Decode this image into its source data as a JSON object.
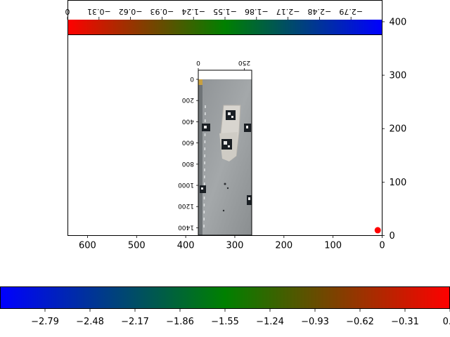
{
  "chart_data": [
    {
      "type": "scatter",
      "xlim": [
        0,
        640
      ],
      "ylim": [
        0,
        440
      ],
      "x_inverted": true,
      "xticks": [
        600,
        500,
        400,
        300,
        200,
        100,
        0
      ],
      "xtick_labels": [
        "600",
        "500",
        "400",
        "300",
        "200",
        "100",
        "0"
      ],
      "yticks": [
        0,
        100,
        200,
        300,
        400
      ],
      "ytick_labels": [
        "0",
        "100",
        "200",
        "300",
        "400"
      ],
      "y_axis_side": "right",
      "points": [
        {
          "x": 9,
          "y": 10
        }
      ],
      "point_color": "#ff0000",
      "grid": false
    },
    {
      "type": "colorbar",
      "orientation": "horizontal",
      "range": [
        -3.1,
        0
      ],
      "ticks": [
        -2.79,
        -2.48,
        -2.17,
        -1.86,
        -1.55,
        -1.24,
        -0.93,
        -0.62,
        -0.31,
        0.0
      ],
      "tick_labels": [
        "−2.79",
        "−2.48",
        "−2.17",
        "−1.86",
        "−1.55",
        "−1.24",
        "−0.93",
        "−0.62",
        "−0.31",
        "0.0"
      ],
      "colors": [
        "#0000ff",
        "#008000",
        "#ff0000"
      ]
    },
    {
      "type": "colorbar",
      "orientation": "horizontal",
      "mirrored": true,
      "range": [
        -3.1,
        0
      ],
      "ticks": [
        -2.79,
        -2.48,
        -2.17,
        -1.86,
        -1.55,
        -1.24,
        -0.93,
        -0.62,
        -0.31,
        0.0
      ],
      "tick_labels": [
        "−2.79",
        "−2.48",
        "−2.17",
        "−1.86",
        "−1.55",
        "−1.24",
        "−0.93",
        "−0.62",
        "−0.31",
        "0"
      ],
      "colors": [
        "#ff0000",
        "#008000",
        "#0000ff"
      ]
    },
    {
      "type": "image",
      "content": "aerial photo of a white boat with fiducial markers on asphalt",
      "xticks": [
        0,
        250
      ],
      "xtick_labels": [
        "0",
        "250"
      ],
      "yticks": [
        0,
        200,
        400,
        600,
        800,
        1000,
        1200,
        1400
      ],
      "ytick_labels": [
        "0",
        "200",
        "400",
        "600",
        "800",
        "1000",
        "1200",
        "1400"
      ],
      "flipped_labels": true,
      "extent_x": [
        0,
        290
      ],
      "extent_y": [
        0,
        1470
      ]
    }
  ]
}
